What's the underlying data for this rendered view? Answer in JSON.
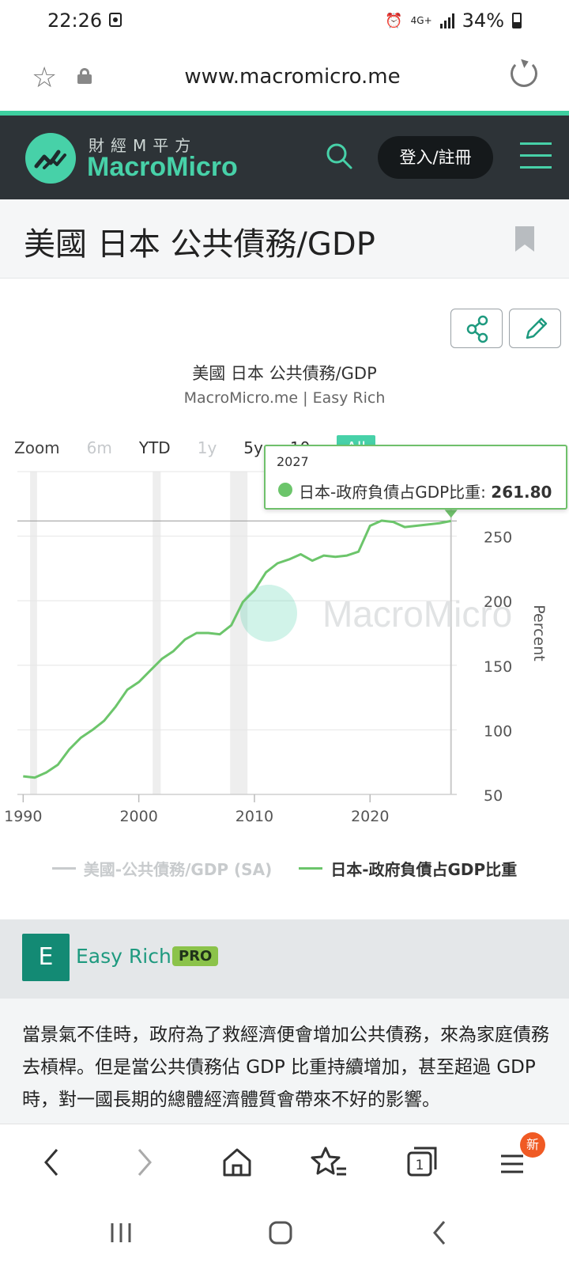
{
  "status_bar": {
    "time": "22:26",
    "network": "4G+",
    "battery": "34%"
  },
  "browser": {
    "url": "www.macromicro.me"
  },
  "site": {
    "logo_sub": "財經M平方",
    "logo_main": "MacroMicro",
    "login_label": "登入/註冊",
    "accent_color": "#47d1a8"
  },
  "page": {
    "title": "美國 日本 公共債務/GDP"
  },
  "chart": {
    "title": "美國 日本 公共債務/GDP",
    "subtitle": "MacroMicro.me | Easy Rich",
    "zoom": {
      "label": "Zoom",
      "options": [
        "6m",
        "YTD",
        "1y",
        "5y",
        "10y",
        "All"
      ],
      "selected": "All"
    },
    "tooltip": {
      "year": "2027",
      "label": "日本-政府負債占GDP比重: ",
      "value": "261.80"
    },
    "watermark": "MacroMicro",
    "legend": {
      "us": "美國-公共債務/GDP (SA)",
      "jp": "日本-政府負債占GDP比重"
    }
  },
  "chart_data": {
    "type": "line",
    "title": "美國 日本 公共債務/GDP",
    "subtitle": "MacroMicro.me | Easy Rich",
    "ylabel": "Percent",
    "xlim": [
      1989.5,
      2027.5
    ],
    "ylim": [
      50,
      300
    ],
    "x_ticks": [
      1990,
      2000,
      2010,
      2020
    ],
    "y_ticks": [
      50,
      100,
      150,
      200,
      250
    ],
    "legend_position": "bottom",
    "grid": true,
    "recession_bands": [
      [
        1990.6,
        1991.2
      ],
      [
        2001.2,
        2001.9
      ],
      [
        2007.9,
        2009.4
      ]
    ],
    "crosshair_y": 261.8,
    "series": [
      {
        "name": "美國-公共債務/GDP (SA)",
        "color": "#c8cbcd",
        "visible": false,
        "x": [],
        "values": []
      },
      {
        "name": "日本-政府負債占GDP比重",
        "color": "#6cc56b",
        "x": [
          1990,
          1991,
          1992,
          1993,
          1994,
          1995,
          1996,
          1997,
          1998,
          1999,
          2000,
          2001,
          2002,
          2003,
          2004,
          2005,
          2006,
          2007,
          2008,
          2009,
          2010,
          2011,
          2012,
          2013,
          2014,
          2015,
          2016,
          2017,
          2018,
          2019,
          2020,
          2021,
          2022,
          2023,
          2024,
          2025,
          2026,
          2027
        ],
        "values": [
          64,
          63,
          67,
          73,
          85,
          94,
          100,
          107,
          118,
          131,
          137,
          146,
          155,
          161,
          170,
          175,
          175,
          174,
          181,
          199,
          208,
          222,
          229,
          232,
          236,
          231,
          235,
          234,
          235,
          238,
          258,
          262,
          261,
          257,
          258,
          259,
          260,
          261.8
        ]
      }
    ]
  },
  "author": {
    "initial": "E",
    "name": "Easy Rich",
    "badge": "PRO"
  },
  "description": "當景氣不佳時，政府為了救經濟便會增加公共債務，來為家庭債務去槓桿。但是當公共債務佔 GDP 比重持續增加，甚至超過 GDP 時，對一國長期的總體經濟體質會帶來不好的影響。",
  "bottom_nav": {
    "tabs_count": "1",
    "badge": "新"
  }
}
